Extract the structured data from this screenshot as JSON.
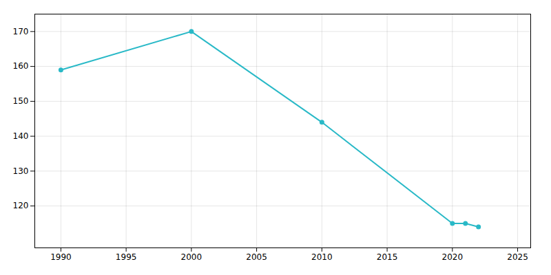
{
  "chart_data": {
    "type": "line",
    "x": [
      1990,
      2000,
      2010,
      2020,
      2021,
      2022
    ],
    "values": [
      159,
      170,
      144,
      115,
      115,
      114
    ],
    "color": "#29b9c7",
    "marker": "o",
    "xlim": [
      1988,
      2026
    ],
    "ylim": [
      108,
      175
    ],
    "xticks": [
      1990,
      1995,
      2000,
      2005,
      2010,
      2015,
      2020,
      2025
    ],
    "yticks": [
      120,
      130,
      140,
      150,
      160,
      170
    ],
    "grid": true
  }
}
